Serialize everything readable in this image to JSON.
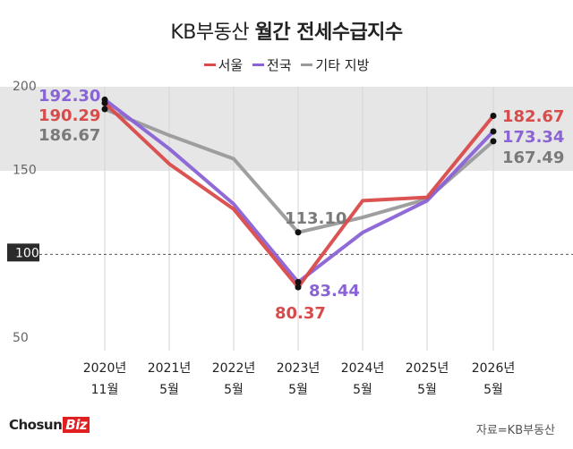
{
  "title": {
    "part1": "KB부동산",
    "part2": "월간 전세수급지수"
  },
  "legend": [
    {
      "name": "서울",
      "color": "#d94a4a"
    },
    {
      "name": "전국",
      "color": "#8a63d6"
    },
    {
      "name": "기타 지방",
      "color": "#9a9a9a"
    }
  ],
  "source": "자료=KB부동산",
  "brand": {
    "part1": "Chosun",
    "part2": "Biz"
  },
  "colors": {
    "seoul": "#d94a4a",
    "nation": "#8a63d6",
    "regional": "#9a9a9a",
    "band": "#e6e6e6"
  },
  "chart_data": {
    "type": "line",
    "categories": [
      [
        "2020년",
        "11월"
      ],
      [
        "2021년",
        "5월"
      ],
      [
        "2022년",
        "5월"
      ],
      [
        "2023년",
        "5월"
      ],
      [
        "2024년",
        "5월"
      ],
      [
        "2025년",
        "5월"
      ],
      [
        "2026년",
        "5월"
      ]
    ],
    "series": [
      {
        "name": "서울",
        "values": [
          190.29,
          154,
          127,
          80.37,
          132,
          134,
          182.67
        ]
      },
      {
        "name": "전국",
        "values": [
          192.3,
          163,
          130,
          83.44,
          113,
          132,
          173.34
        ]
      },
      {
        "name": "기타 지방",
        "values": [
          186.67,
          171,
          157,
          113.1,
          122,
          133,
          167.49
        ]
      }
    ],
    "yticks": [
      200,
      150,
      100,
      50
    ],
    "ylim": [
      45,
      205
    ],
    "reference_line": 100,
    "shaded_band": [
      150,
      200
    ],
    "data_labels": [
      {
        "text": "192.30",
        "series": 1,
        "index": 0
      },
      {
        "text": "190.29",
        "series": 0,
        "index": 0
      },
      {
        "text": "186.67",
        "series": 2,
        "index": 0
      },
      {
        "text": "113.10",
        "series": 2,
        "index": 3
      },
      {
        "text": "83.44",
        "series": 1,
        "index": 3
      },
      {
        "text": "80.37",
        "series": 0,
        "index": 3
      },
      {
        "text": "182.67",
        "series": 0,
        "index": 6
      },
      {
        "text": "173.34",
        "series": 1,
        "index": 6
      },
      {
        "text": "167.49",
        "series": 2,
        "index": 6
      }
    ]
  }
}
